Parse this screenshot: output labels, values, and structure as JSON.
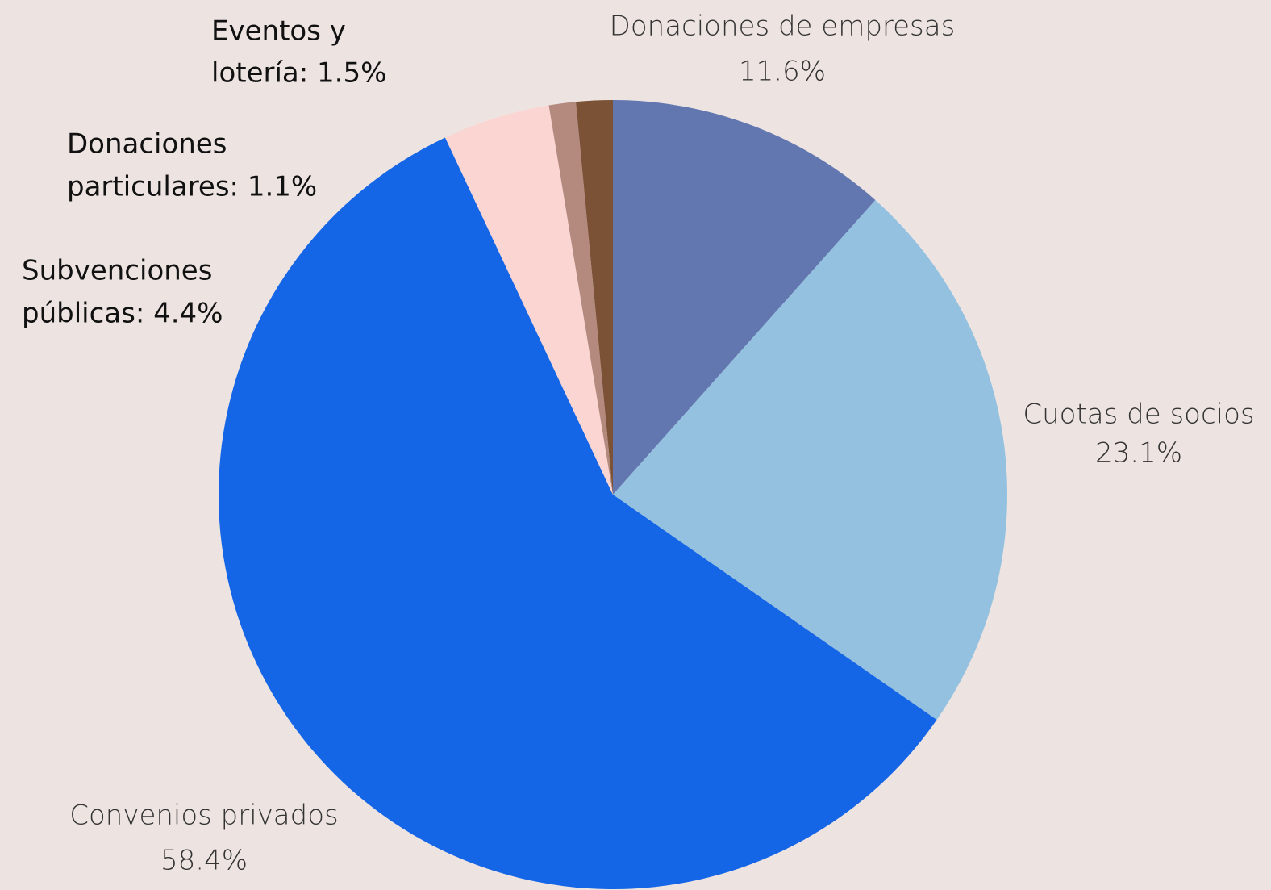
{
  "chart_data": {
    "type": "pie",
    "labels": [
      [
        "Donaciones de empresas",
        "11.6%"
      ],
      [
        "Cuotas de socios",
        "23.1%"
      ],
      [
        "Convenios privados",
        "58.4%"
      ],
      [
        "Subvenciones",
        "públicas: 4.4%"
      ],
      [
        "Donaciones",
        "particulares: 1.1%"
      ],
      [
        "Eventos y",
        "lotería: 1.5%"
      ]
    ],
    "values": [
      11.6,
      23.1,
      58.4,
      4.4,
      1.1,
      1.5
    ],
    "colors": [
      "#6276b0",
      "#94c1e0",
      "#1566e6",
      "#fbd5d1",
      "#b48a7e",
      "#7b5236"
    ]
  }
}
